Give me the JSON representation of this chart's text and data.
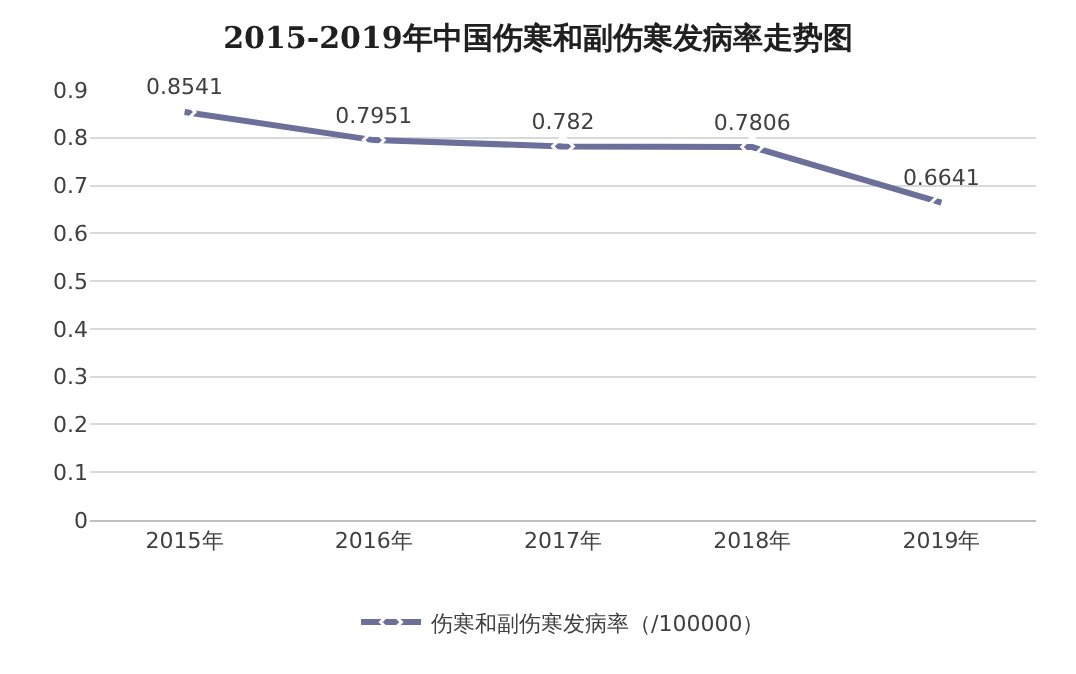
{
  "chart_data": {
    "type": "line",
    "title": "2015-2019年中国伤寒和副伤寒发病率走势图",
    "categories": [
      "2015年",
      "2016年",
      "2017年",
      "2018年",
      "2019年"
    ],
    "series": [
      {
        "name": "伤寒和副伤寒发病率（/100000）",
        "color": "#6b6f9a",
        "values": [
          0.8541,
          0.7951,
          0.782,
          0.7806,
          0.6641
        ]
      }
    ],
    "ylim": [
      0,
      0.9
    ],
    "yticks": [
      0,
      0.1,
      0.2,
      0.3,
      0.4,
      0.5,
      0.6,
      0.7,
      0.8,
      0.9
    ],
    "grid": "y",
    "legend": "bottom",
    "marker": "diamond",
    "line_style": "solid",
    "data_labels": true
  }
}
